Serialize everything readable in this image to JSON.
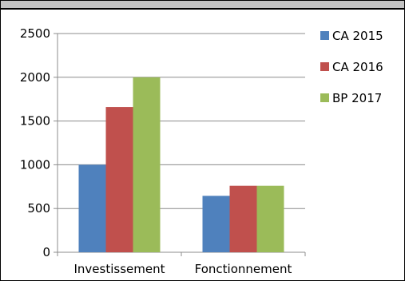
{
  "chart_data": {
    "type": "bar",
    "title": "",
    "categories": [
      "Investissement",
      "Fonctionnement"
    ],
    "series": [
      {
        "name": "CA 2015",
        "color": "#4f81bd",
        "values": [
          1000,
          645
        ]
      },
      {
        "name": "CA 2016",
        "color": "#c0504d",
        "values": [
          1660,
          760
        ]
      },
      {
        "name": "BP 2017",
        "color": "#9bbb59",
        "values": [
          2000,
          760
        ]
      }
    ],
    "ylim": [
      0,
      2500
    ],
    "yticks": [
      0,
      500,
      1000,
      1500,
      2000,
      2500
    ],
    "grid": true,
    "legend_position": "right",
    "xlabel": "",
    "ylabel": ""
  }
}
